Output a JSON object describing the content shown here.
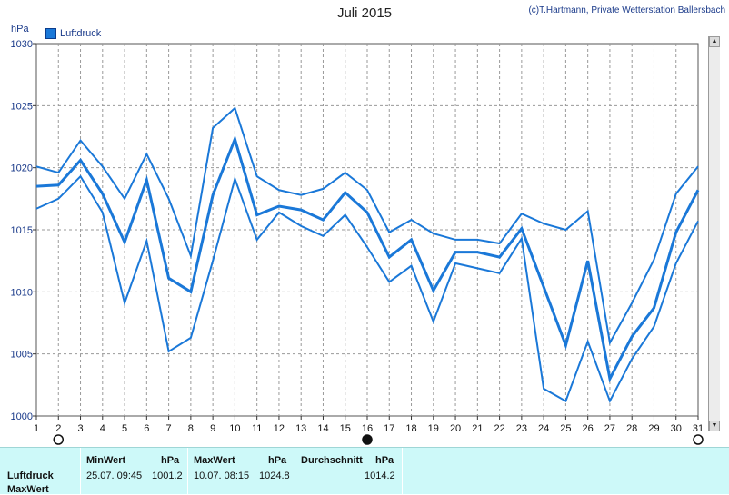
{
  "header": {
    "title": "Juli 2015",
    "credit": "(c)T.Hartmann, Private Wetterstation Ballersbach",
    "unit": "hPa",
    "legend": "Luftdruck"
  },
  "colors": {
    "line": "#1a78d8",
    "grid": "#9a9a9a",
    "stats_bg": "#cdf9f9"
  },
  "moon_phases": [
    {
      "day": 2,
      "phase": "full-moon"
    },
    {
      "day": 16,
      "phase": "new-moon"
    },
    {
      "day": 31,
      "phase": "full-moon"
    }
  ],
  "chart_data": {
    "type": "line",
    "x": [
      1,
      2,
      3,
      4,
      5,
      6,
      7,
      8,
      9,
      10,
      11,
      12,
      13,
      14,
      15,
      16,
      17,
      18,
      19,
      20,
      21,
      22,
      23,
      24,
      25,
      26,
      27,
      28,
      29,
      30,
      31
    ],
    "ylim": [
      1000,
      1030
    ],
    "yticks": [
      1000,
      1005,
      1010,
      1015,
      1020,
      1025,
      1030
    ],
    "grid": true,
    "legend": "top-left",
    "series": [
      {
        "name": "Luftdruck",
        "role": "max",
        "values": [
          1020.1,
          1019.6,
          1022.2,
          1020.1,
          1017.5,
          1021.1,
          1017.5,
          1012.9,
          1023.2,
          1024.8,
          1019.3,
          1018.2,
          1017.8,
          1018.3,
          1019.6,
          1018.2,
          1014.8,
          1015.8,
          1014.7,
          1014.2,
          1014.2,
          1013.9,
          1016.3,
          1015.5,
          1015.0,
          1016.5,
          1005.9,
          1009.1,
          1012.6,
          1017.9,
          1020.1
        ]
      },
      {
        "name": "Luftdruck",
        "role": "mean",
        "values": [
          1018.5,
          1018.6,
          1020.6,
          1017.9,
          1014.0,
          1019.0,
          1011.1,
          1010.0,
          1017.8,
          1022.3,
          1016.2,
          1016.9,
          1016.6,
          1015.8,
          1018.0,
          1016.4,
          1012.8,
          1014.2,
          1010.1,
          1013.2,
          1013.2,
          1012.8,
          1015.1,
          1010.4,
          1005.7,
          1012.5,
          1003.0,
          1006.4,
          1008.7,
          1014.8,
          1018.2
        ]
      },
      {
        "name": "Luftdruck",
        "role": "min",
        "values": [
          1016.7,
          1017.5,
          1019.3,
          1016.4,
          1009.1,
          1014.1,
          1005.2,
          1006.3,
          1012.5,
          1019.1,
          1014.2,
          1016.4,
          1015.3,
          1014.5,
          1016.2,
          1013.6,
          1010.8,
          1012.1,
          1007.6,
          1012.3,
          1011.9,
          1011.5,
          1014.3,
          1002.2,
          1001.2,
          1006.0,
          1001.2,
          1004.6,
          1007.2,
          1012.3,
          1015.7
        ]
      }
    ]
  },
  "stats": {
    "row_label_1": "Luftdruck",
    "row_label_2": "MaxWert",
    "min": {
      "header": "MinWert",
      "unit": "hPa",
      "when": "25.07.  09:45",
      "value": "1001.2"
    },
    "max": {
      "header": "MaxWert",
      "unit": "hPa",
      "when": "10.07.  08:15",
      "value": "1024.8"
    },
    "avg": {
      "header": "Durchschnitt",
      "unit": "hPa",
      "value": "1014.2"
    }
  }
}
